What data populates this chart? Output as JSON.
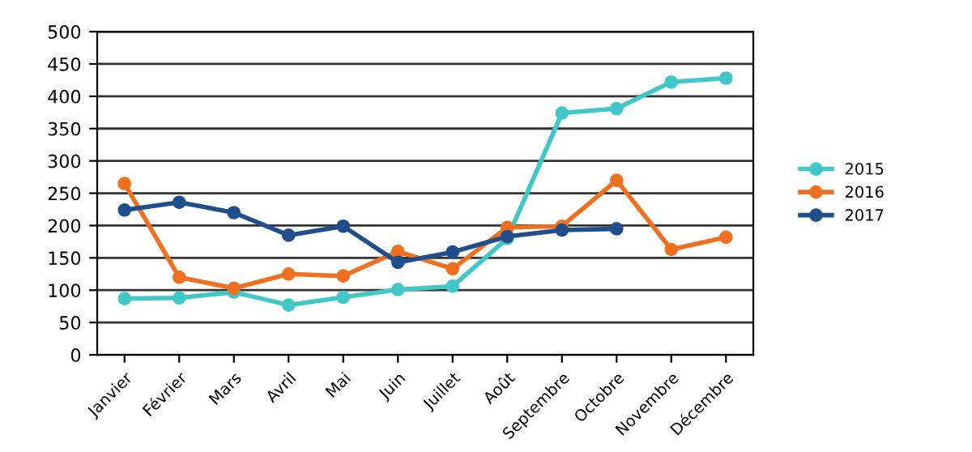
{
  "chart_data": {
    "type": "line",
    "categories": [
      "Janvier",
      "Février",
      "Mars",
      "Avril",
      "Mai",
      "Juin",
      "Juillet",
      "Août",
      "Septembre",
      "Octobre",
      "Novembre",
      "Décembre"
    ],
    "series": [
      {
        "name": "2015",
        "color": "#40c8c8",
        "values": [
          87,
          88,
          97,
          77,
          89,
          101,
          106,
          180,
          374,
          381,
          422,
          428
        ]
      },
      {
        "name": "2016",
        "color": "#f07020",
        "values": [
          265,
          120,
          103,
          125,
          122,
          160,
          133,
          197,
          199,
          270,
          163,
          182
        ]
      },
      {
        "name": "2017",
        "color": "#1f4e8c",
        "values": [
          224,
          236,
          220,
          185,
          199,
          143,
          159,
          183,
          193,
          195,
          null,
          null
        ]
      }
    ],
    "ylim": [
      0,
      500
    ],
    "yticks": [
      0,
      50,
      100,
      150,
      200,
      250,
      300,
      350,
      400,
      450,
      500
    ],
    "grid": "y",
    "legend": "right",
    "marker": "circle",
    "line_style": "solid"
  }
}
